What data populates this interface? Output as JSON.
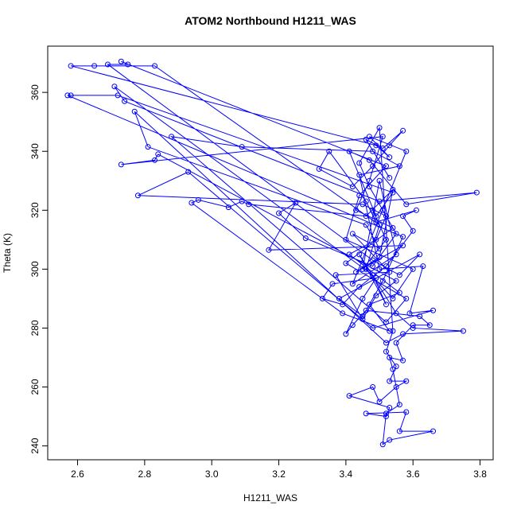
{
  "chart_data": {
    "type": "line-points",
    "title": "ATOM2 Northbound H1211_WAS",
    "x_label": "H1211_WAS",
    "y_label": "Theta (K)",
    "color": "#0000ff",
    "xlim": [
      2.511,
      3.839
    ],
    "ylim": [
      235.3,
      375.7
    ],
    "xticks": [
      2.6,
      2.8,
      {
        "value": 3,
        "label": "3.0"
      },
      3.2,
      3.4,
      3.6,
      3.8
    ],
    "yticks": [
      240,
      260,
      280,
      300,
      320,
      340,
      360
    ],
    "x": [
      3.48,
      3.52,
      3.45,
      3.5,
      3.55,
      3.42,
      3.58,
      3.47,
      3.53,
      3.49,
      2.58,
      2.65,
      2.83,
      3.5,
      3.46,
      3.54,
      3.6,
      3.4,
      3.44,
      3.52,
      2.73,
      2.75,
      2.69,
      3.48,
      3.56,
      3.62,
      3.38,
      3.45,
      3.51,
      3.57,
      2.57,
      2.58,
      2.72,
      3.54,
      3.49,
      3.41,
      3.47,
      3.58,
      3.79,
      3.5,
      2.74,
      2.71,
      3.48,
      3.52,
      3.44,
      3.55,
      3.6,
      3.75,
      3.57,
      3.52,
      2.77,
      2.81,
      3.46,
      3.5,
      3.42,
      3.53,
      3.37,
      3.45,
      3.49,
      3.55,
      2.84,
      2.83,
      2.73,
      3.51,
      3.47,
      3.43,
      3.54,
      3.4,
      3.58,
      3.52,
      2.88,
      3.09,
      3.48,
      3.56,
      3.44,
      3.5,
      3.63,
      3.59,
      3.66,
      3.48,
      2.93,
      2.78,
      3.45,
      3.52,
      3.49,
      3.41,
      3.56,
      3.47,
      3.53,
      3.39,
      2.94,
      2.96,
      3.05,
      3.09,
      3.11,
      3.46,
      3.54,
      3.5,
      3.43,
      3.57,
      3.17,
      3.25,
      3.2,
      3.28,
      3.48,
      3.55,
      3.51,
      3.47,
      3.44,
      3.5,
      3.54,
      3.52,
      3.55,
      3.53,
      3.58,
      3.55,
      3.5,
      3.48,
      3.41,
      3.53,
      3.52,
      3.46,
      3.58,
      3.56,
      3.66,
      3.53,
      3.51,
      3.52,
      3.56,
      3.54,
      3.53,
      3.57,
      3.55,
      3.6,
      3.65,
      3.62,
      3.46,
      3.42,
      3.4,
      3.45,
      3.49,
      3.36,
      3.33,
      3.39,
      3.44,
      3.52,
      3.6,
      3.57,
      3.61,
      3.49,
      3.46,
      3.35,
      3.32,
      3.42,
      3.48,
      3.53,
      3.57,
      3.51,
      3.46,
      3.53
    ],
    "values": [
      320,
      310,
      300,
      330,
      305,
      295,
      340,
      345,
      338,
      342,
      369,
      369,
      369,
      315,
      300,
      290,
      300,
      310,
      325,
      335,
      370.5,
      369.5,
      369.5,
      303,
      298,
      305,
      290,
      284,
      296,
      311,
      359,
      359,
      359,
      326,
      318,
      340,
      337,
      322,
      326,
      323,
      357,
      362,
      298,
      288,
      305,
      285,
      280,
      279,
      278,
      275,
      353.5,
      341.5,
      315,
      307,
      312,
      299,
      298,
      283,
      291,
      296,
      339,
      337,
      335.5,
      345,
      330,
      320,
      314,
      302,
      290,
      282,
      345,
      341.5,
      340,
      335,
      332,
      300,
      301,
      285,
      286,
      280,
      333,
      325,
      322,
      318,
      310,
      305,
      292,
      288,
      279,
      285,
      322.5,
      323.5,
      321,
      323,
      322,
      318,
      327,
      304,
      299,
      308,
      306.5,
      322.5,
      319,
      310.5,
      301,
      312,
      320,
      328,
      336,
      348,
      279,
      272,
      267,
      262,
      262,
      260,
      255,
      260,
      257,
      253,
      250,
      251,
      251.5,
      245,
      245,
      242,
      240.5,
      251,
      254,
      266,
      270,
      269,
      275,
      281,
      281,
      284,
      286,
      281,
      278,
      290,
      297,
      295,
      290,
      288,
      294,
      301,
      313,
      318,
      320,
      316,
      323,
      340,
      334,
      328,
      335,
      342,
      347,
      341,
      344,
      331
    ]
  }
}
